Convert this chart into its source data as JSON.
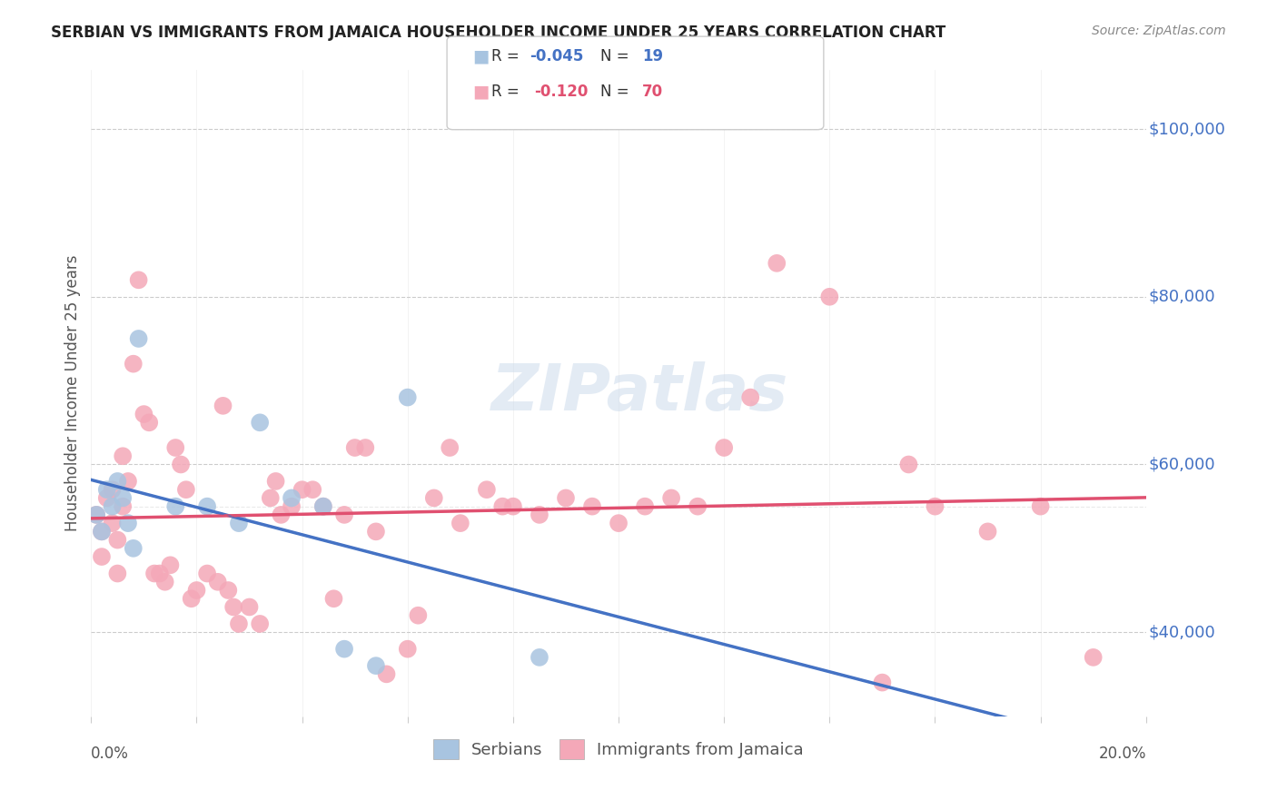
{
  "title": "SERBIAN VS IMMIGRANTS FROM JAMAICA HOUSEHOLDER INCOME UNDER 25 YEARS CORRELATION CHART",
  "source": "Source: ZipAtlas.com",
  "ylabel": "Householder Income Under 25 years",
  "y_tick_labels": [
    "$40,000",
    "$60,000",
    "$80,000",
    "$100,000"
  ],
  "y_tick_values": [
    40000,
    60000,
    80000,
    100000
  ],
  "xlim": [
    0.0,
    0.2
  ],
  "ylim": [
    30000,
    107000
  ],
  "color_serbian": "#a8c4e0",
  "color_jamaica": "#f4a8b8",
  "color_serbian_line": "#4472c4",
  "color_jamaica_line": "#e05070",
  "color_right_labels": "#4472c4",
  "serbian_x": [
    0.001,
    0.002,
    0.003,
    0.004,
    0.005,
    0.006,
    0.007,
    0.008,
    0.009,
    0.016,
    0.022,
    0.028,
    0.032,
    0.038,
    0.044,
    0.048,
    0.054,
    0.06,
    0.085
  ],
  "serbian_y": [
    54000,
    52000,
    57000,
    55000,
    58000,
    56000,
    53000,
    50000,
    75000,
    55000,
    55000,
    53000,
    65000,
    56000,
    55000,
    38000,
    36000,
    68000,
    37000
  ],
  "jamaica_x": [
    0.001,
    0.002,
    0.002,
    0.003,
    0.004,
    0.004,
    0.005,
    0.005,
    0.006,
    0.006,
    0.007,
    0.008,
    0.009,
    0.01,
    0.011,
    0.012,
    0.013,
    0.014,
    0.015,
    0.016,
    0.017,
    0.018,
    0.019,
    0.02,
    0.022,
    0.024,
    0.025,
    0.026,
    0.027,
    0.028,
    0.03,
    0.032,
    0.034,
    0.035,
    0.036,
    0.038,
    0.04,
    0.042,
    0.044,
    0.046,
    0.048,
    0.05,
    0.052,
    0.054,
    0.056,
    0.06,
    0.062,
    0.065,
    0.068,
    0.07,
    0.075,
    0.078,
    0.08,
    0.085,
    0.09,
    0.095,
    0.1,
    0.105,
    0.11,
    0.115,
    0.12,
    0.125,
    0.13,
    0.14,
    0.15,
    0.155,
    0.16,
    0.17,
    0.18,
    0.19
  ],
  "jamaica_y": [
    54000,
    52000,
    49000,
    56000,
    53000,
    57000,
    51000,
    47000,
    55000,
    61000,
    58000,
    72000,
    82000,
    66000,
    65000,
    47000,
    47000,
    46000,
    48000,
    62000,
    60000,
    57000,
    44000,
    45000,
    47000,
    46000,
    67000,
    45000,
    43000,
    41000,
    43000,
    41000,
    56000,
    58000,
    54000,
    55000,
    57000,
    57000,
    55000,
    44000,
    54000,
    62000,
    62000,
    52000,
    35000,
    38000,
    42000,
    56000,
    62000,
    53000,
    57000,
    55000,
    55000,
    54000,
    56000,
    55000,
    53000,
    55000,
    56000,
    55000,
    62000,
    68000,
    84000,
    80000,
    34000,
    60000,
    55000,
    52000,
    55000,
    37000
  ],
  "watermark": "ZIPatlas",
  "serbians_label": "Serbians",
  "jamaica_label": "Immigrants from Jamaica"
}
